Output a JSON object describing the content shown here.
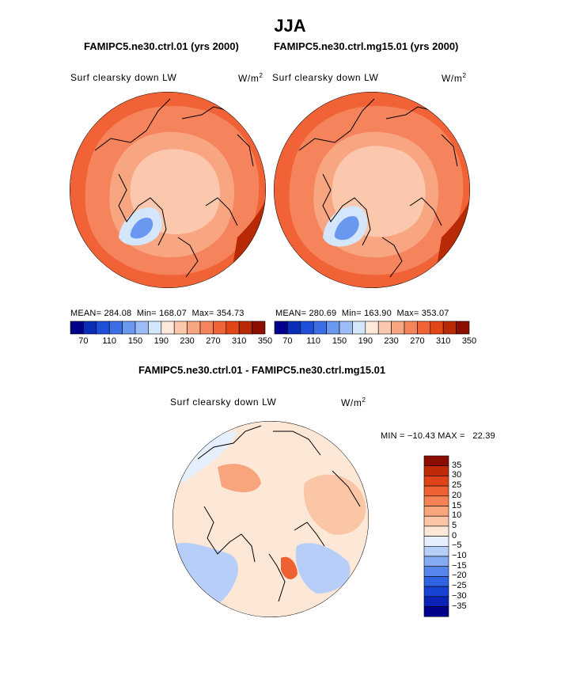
{
  "title": "JJA",
  "panels": [
    {
      "title": "FAMIPC5.ne30.ctrl.01 (yrs 2000)",
      "variable": "Surf clearsky down LW",
      "units": "W/m",
      "units_sup": "2",
      "stats": {
        "mean_label": "MEAN=",
        "mean": "284.08",
        "min_label": "Min=",
        "min": "168.07",
        "max_label": "Max=",
        "max": "354.73"
      }
    },
    {
      "title": "FAMIPC5.ne30.ctrl.mg15.01 (yrs 2000)",
      "variable": "Surf clearsky down LW",
      "units": "W/m",
      "units_sup": "2",
      "stats": {
        "mean_label": "MEAN=",
        "mean": "280.69",
        "min_label": "Min=",
        "min": "163.90",
        "max_label": "Max=",
        "max": "353.07"
      }
    }
  ],
  "top_colorbar": {
    "colors": [
      "#00008b",
      "#0a2db8",
      "#1f4fd8",
      "#3c6fe6",
      "#6a97f0",
      "#9cbcf7",
      "#d4e6fb",
      "#fde8dc",
      "#fbc7ad",
      "#f8a582",
      "#f5835b",
      "#f16236",
      "#e04616",
      "#b82a06",
      "#8b0e00"
    ],
    "tick_labels": [
      "70",
      "110",
      "150",
      "190",
      "230",
      "270",
      "310",
      "350"
    ]
  },
  "diff_panel": {
    "title": "FAMIPC5.ne30.ctrl.01 - FAMIPC5.ne30.ctrl.mg15.01",
    "variable": "Surf clearsky down LW",
    "units": "W/m",
    "units_sup": "2",
    "minmax_text": "MIN = −10.43 MAX =   22.39"
  },
  "diff_colorbar": {
    "colors": [
      "#00008b",
      "#0a22b5",
      "#1842d2",
      "#3063e2",
      "#5686ec",
      "#85abf3",
      "#b7cff8",
      "#e6f0fc",
      "#fde7d6",
      "#fbc6a6",
      "#f8a47c",
      "#f48255",
      "#ee6133",
      "#de4417",
      "#bf2a07",
      "#8b0d00"
    ],
    "labels": [
      "35",
      "30",
      "25",
      "20",
      "15",
      "10",
      "5",
      "0",
      "−5",
      "−10",
      "−15",
      "−20",
      "−25",
      "−30",
      "−35"
    ]
  },
  "chart_data": [
    {
      "type": "heatmap",
      "projection": "north-polar-stereographic",
      "title": "FAMIPC5.ne30.ctrl.01 (yrs 2000)",
      "variable": "Surf clearsky down LW",
      "units": "W/m^2",
      "mean": 284.08,
      "min": 168.07,
      "max": 354.73,
      "contour_levels": [
        70,
        90,
        110,
        130,
        150,
        170,
        190,
        210,
        230,
        250,
        270,
        290,
        310,
        330,
        350
      ]
    },
    {
      "type": "heatmap",
      "projection": "north-polar-stereographic",
      "title": "FAMIPC5.ne30.ctrl.mg15.01 (yrs 2000)",
      "variable": "Surf clearsky down LW",
      "units": "W/m^2",
      "mean": 280.69,
      "min": 163.9,
      "max": 353.07,
      "contour_levels": [
        70,
        90,
        110,
        130,
        150,
        170,
        190,
        210,
        230,
        250,
        270,
        290,
        310,
        330,
        350
      ]
    },
    {
      "type": "heatmap",
      "projection": "north-polar-stereographic",
      "title": "FAMIPC5.ne30.ctrl.01 - FAMIPC5.ne30.ctrl.mg15.01",
      "variable": "Surf clearsky down LW",
      "units": "W/m^2",
      "min": -10.43,
      "max": 22.39,
      "contour_levels": [
        -35,
        -30,
        -25,
        -20,
        -15,
        -10,
        -5,
        0,
        5,
        10,
        15,
        20,
        25,
        30,
        35
      ]
    }
  ]
}
